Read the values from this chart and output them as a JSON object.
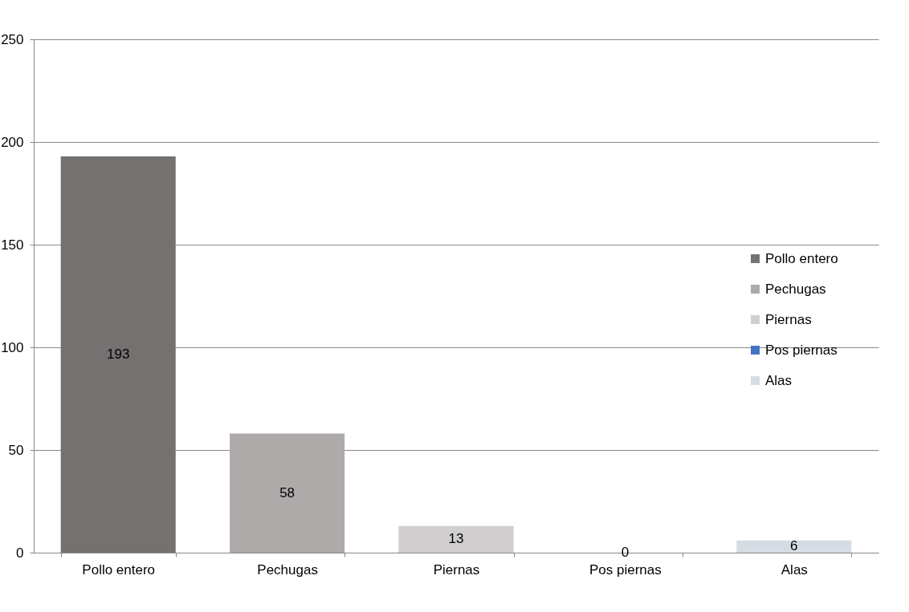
{
  "chart_data": {
    "type": "bar",
    "categories": [
      "Pollo entero",
      "Pechugas",
      "Piernas",
      "Pos piernas",
      "Alas"
    ],
    "series": [
      {
        "name": "Pollo entero",
        "color": "#767171",
        "values": [
          193,
          null,
          null,
          null,
          null
        ]
      },
      {
        "name": "Pechugas",
        "color": "#aeaaaa",
        "values": [
          null,
          58,
          null,
          null,
          null
        ]
      },
      {
        "name": "Piernas",
        "color": "#d0cece",
        "values": [
          null,
          null,
          13,
          null,
          null
        ]
      },
      {
        "name": "Pos piernas",
        "color": "#4472c4",
        "values": [
          null,
          null,
          null,
          0,
          null
        ]
      },
      {
        "name": "Alas",
        "color": "#d6dce4",
        "values": [
          null,
          null,
          null,
          null,
          6
        ]
      }
    ],
    "ylim": [
      0,
      250
    ],
    "yticks": [
      0,
      50,
      100,
      150,
      200,
      250
    ],
    "grid": "y",
    "legend": "right",
    "data_labels": true
  }
}
